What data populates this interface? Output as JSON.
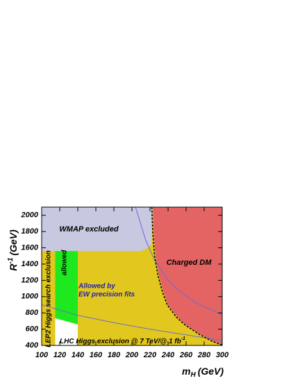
{
  "chart_data": {
    "type": "region",
    "xlabel": {
      "text": "m",
      "sub": "H",
      "unit": "(GeV)"
    },
    "ylabel": {
      "text": "R",
      "sup": "-1",
      "unit": "(GeV)"
    },
    "xlim": [
      100,
      300
    ],
    "ylim": [
      400,
      2100
    ],
    "xticks": [
      100,
      120,
      140,
      160,
      180,
      200,
      220,
      240,
      260,
      280,
      300
    ],
    "yticks": [
      400,
      600,
      800,
      1000,
      1200,
      1400,
      1600,
      1800,
      2000
    ],
    "annotations": {
      "wmap": "WMAP excluded",
      "charged": "Charged DM",
      "allowed": "allowed",
      "ew1": "Allowed by",
      "ew2": "EW precision fits",
      "lep2": "LEP2 Higgs search exclusion",
      "lhc": {
        "text": "LHC Higgs exclusion @ 7 TeV/@ 1 fb",
        "sup": "-1"
      }
    },
    "regions": [
      {
        "color": "#e2c81e",
        "x": [
          100,
          300,
          300,
          100
        ],
        "y": [
          400,
          400,
          2100,
          2100
        ]
      },
      {
        "color": "#c8c8e0",
        "x": [
          100,
          210,
          218,
          222,
          223,
          100
        ],
        "y": [
          1560,
          1560,
          1600,
          1650,
          2100,
          2100
        ]
      },
      {
        "color": "#e46464",
        "x": [
          223,
          224,
          226,
          230,
          235,
          240,
          250,
          260,
          275,
          290,
          300,
          300
        ],
        "y": [
          2100,
          1800,
          1500,
          1250,
          1050,
          900,
          750,
          650,
          540,
          450,
          410,
          2100
        ]
      },
      {
        "color": "#ffffff",
        "x": [
          115,
          140,
          140,
          115
        ],
        "y": [
          400,
          400,
          658,
          735
        ]
      },
      {
        "color": "#1ee81e",
        "x": [
          115,
          140,
          140,
          115
        ],
        "y": [
          735,
          658,
          1560,
          1560
        ]
      }
    ],
    "curves": [
      {
        "color": "#6a6ad0",
        "dash": false,
        "x": [
          204,
          215,
          225,
          240,
          255,
          270,
          285,
          300
        ],
        "y": [
          2100,
          1700,
          1450,
          1200,
          1050,
          930,
          850,
          778
        ]
      },
      {
        "color": "#6a6ad0",
        "dash": false,
        "x": [
          100,
          140,
          180,
          220,
          260,
          300
        ],
        "y": [
          900,
          770,
          680,
          600,
          530,
          460
        ]
      },
      {
        "color": "#000000",
        "dash": true,
        "x": [
          222,
          223,
          225,
          229,
          234,
          239,
          249,
          259,
          274,
          289,
          300
        ],
        "y": [
          2100,
          1800,
          1500,
          1250,
          1050,
          900,
          750,
          650,
          540,
          450,
          405
        ]
      }
    ]
  }
}
